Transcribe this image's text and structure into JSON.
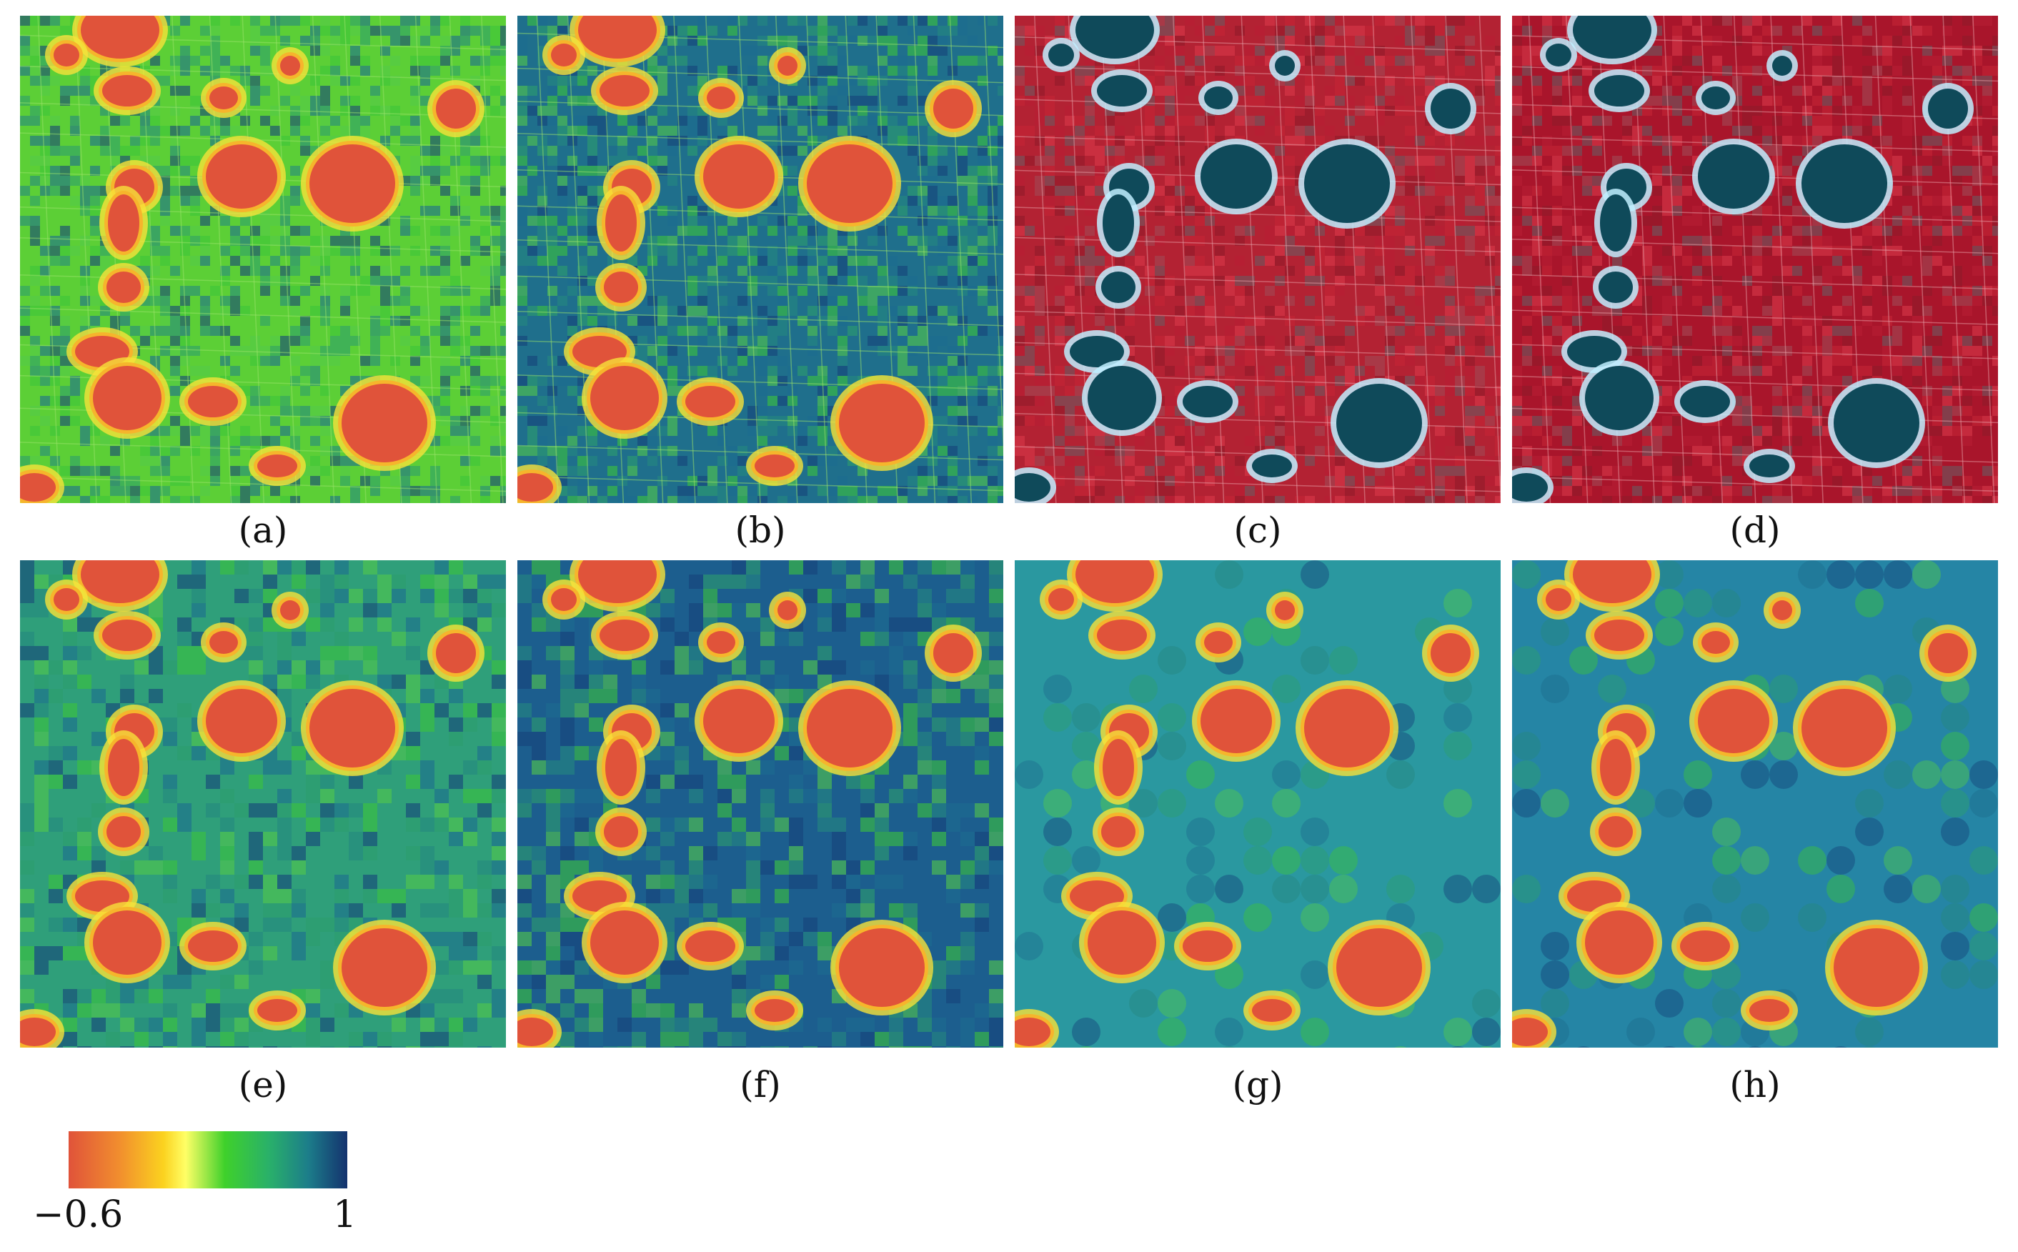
{
  "panels": [
    {
      "id": "a",
      "label": "(a)",
      "kind": "index-fine",
      "bg": "#5ccf36"
    },
    {
      "id": "b",
      "label": "(b)",
      "kind": "index-fine",
      "bg": "#1f6f8c"
    },
    {
      "id": "c",
      "label": "(c)",
      "kind": "false-color",
      "bg": "#b32233"
    },
    {
      "id": "d",
      "label": "(d)",
      "kind": "false-color",
      "bg": "#a9152b"
    },
    {
      "id": "e",
      "label": "(e)",
      "kind": "index-coarse",
      "bg": "#2f9f7a"
    },
    {
      "id": "f",
      "label": "(f)",
      "kind": "index-coarse",
      "bg": "#1c5e8e"
    },
    {
      "id": "g",
      "label": "(g)",
      "kind": "index-smooth",
      "bg": "#2a98a0"
    },
    {
      "id": "h",
      "label": "(h)",
      "kind": "index-smooth",
      "bg": "#2585a5"
    }
  ],
  "colorbar": {
    "min_label": "−0.6",
    "max_label": "1",
    "colors": [
      "#e0533a",
      "#fbd21f",
      "#3fd12b",
      "#1c7d8a",
      "#14326e"
    ]
  },
  "colors": {
    "water_index": "#e0533a",
    "water_edge": "#f6b52c",
    "false_color_water": "#0f4a5a",
    "false_color_edge": "#bfefff"
  }
}
